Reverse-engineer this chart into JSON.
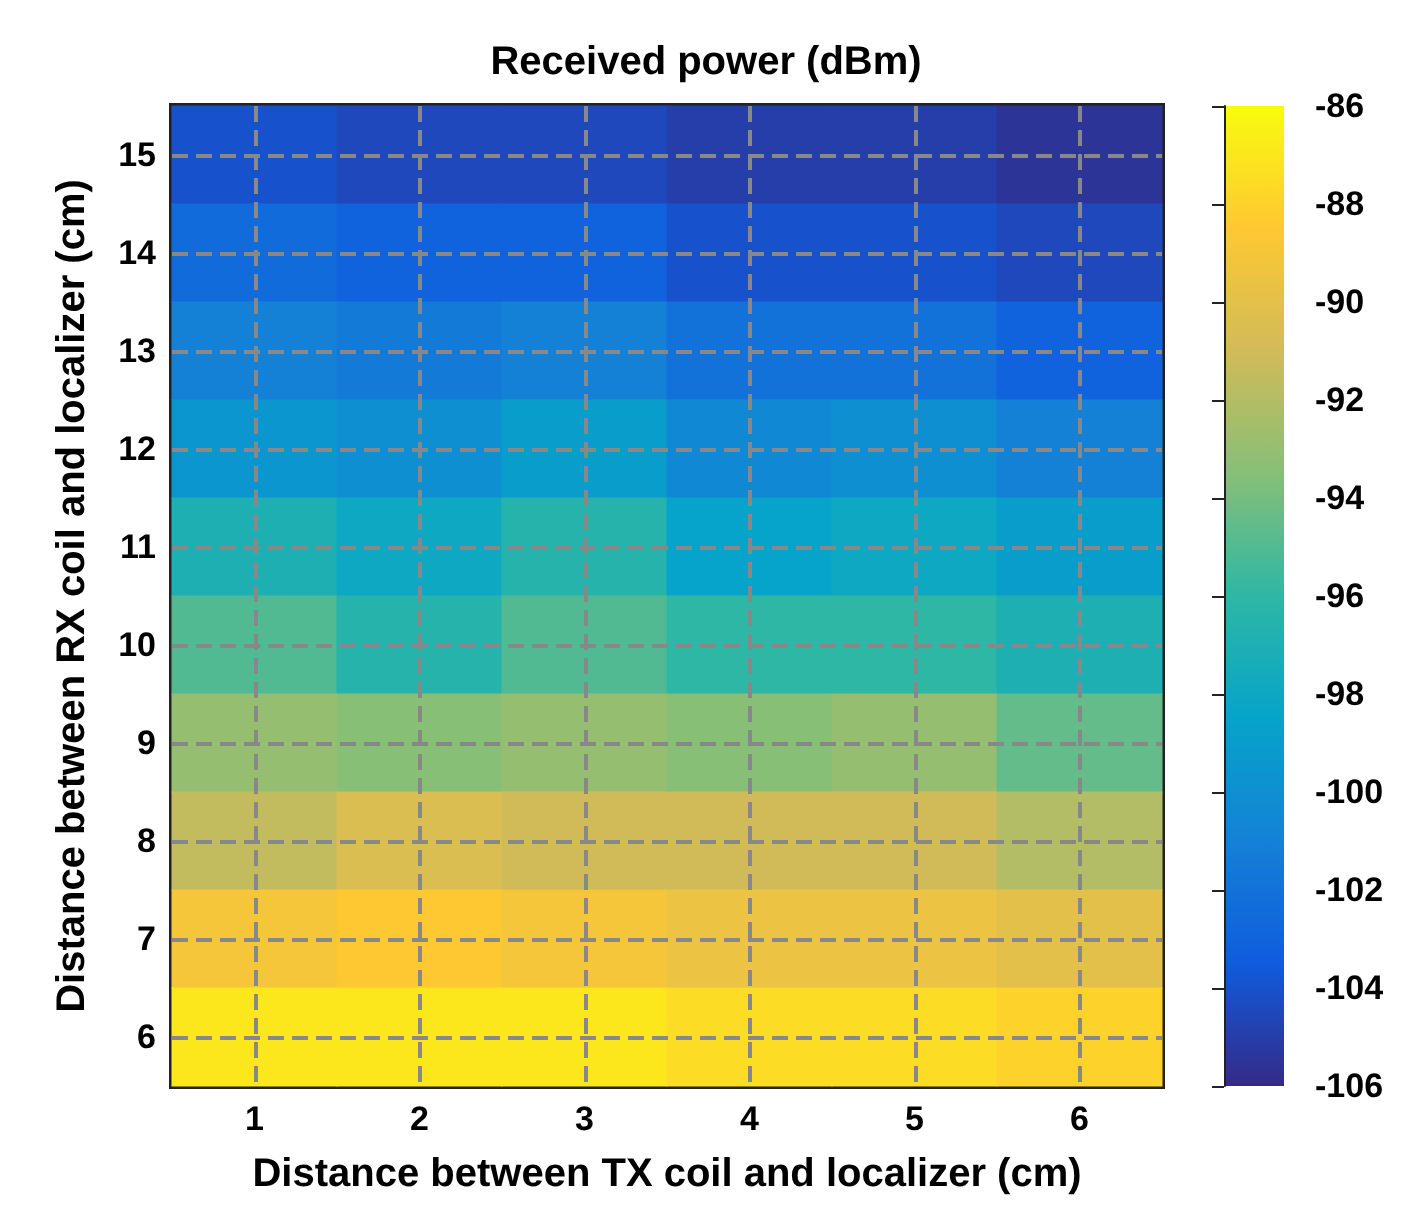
{
  "chart_data": {
    "type": "heatmap",
    "title": "Received power (dBm)",
    "xlabel": "Distance between TX coil and localizer (cm)",
    "ylabel": "Distance between RX coil and localizer (cm)",
    "categories": [
      "1",
      "2",
      "3",
      "4",
      "5",
      "6"
    ],
    "y_categories": [
      "15",
      "14",
      "13",
      "12",
      "11",
      "10",
      "9",
      "8",
      "7",
      "6"
    ],
    "cells": [
      [
        -104,
        -104.5,
        -104.5,
        -105,
        -105,
        -105.5
      ],
      [
        -102.5,
        -103,
        -103,
        -104,
        -104,
        -104.5
      ],
      [
        -101,
        -101.5,
        -101,
        -102,
        -102,
        -103
      ],
      [
        -99.5,
        -100,
        -99,
        -100.5,
        -100,
        -101
      ],
      [
        -97,
        -98,
        -96.5,
        -98.5,
        -98,
        -99
      ],
      [
        -95,
        -96.5,
        -95,
        -96,
        -96,
        -97
      ],
      [
        -93,
        -93.5,
        -93,
        -93.5,
        -93,
        -94.5
      ],
      [
        -91.5,
        -90.5,
        -91,
        -91,
        -91,
        -92
      ],
      [
        -89,
        -88.5,
        -89,
        -89.5,
        -89.5,
        -90
      ],
      [
        -87,
        -87,
        -87,
        -87.5,
        -87.5,
        -88
      ]
    ],
    "clim": [
      -106,
      -86
    ],
    "cticks": [
      -106,
      -104,
      -102,
      -100,
      -98,
      -96,
      -94,
      -92,
      -90,
      -88,
      -86
    ],
    "grid": true
  }
}
